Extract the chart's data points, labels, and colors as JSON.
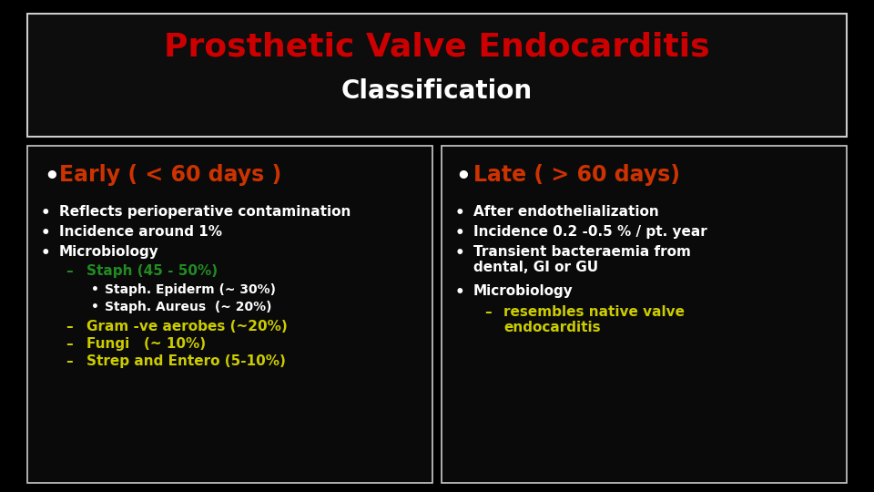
{
  "bg_color": "#000000",
  "header_box_edge": "#cccccc",
  "title": "Prosthetic Valve Endocarditis",
  "title_color": "#cc0000",
  "subtitle": "Classification",
  "subtitle_color": "#ffffff",
  "panel_bg": "#0a0a0a",
  "panel_edge": "#cccccc",
  "left_header": "Early ( < 60 days )",
  "left_header_color": "#cc3300",
  "right_header": "Late ( > 60 days)",
  "right_header_color": "#cc3300",
  "bullet_color": "#ffffff",
  "left_bullets": [
    "Reflects perioperative contamination",
    "Incidence around 1%",
    "Microbiology"
  ],
  "left_sub1_label": "Staph (45 - 50%)",
  "left_sub1_color": "#228B22",
  "left_sub2_items": [
    "Staph. Epiderm (~ 30%)",
    "Staph. Aureus  (~ 20%)"
  ],
  "left_sub2_color": "#ffffff",
  "left_sub3_items": [
    "Gram -ve aerobes (~20%)",
    "Fungi   (~ 10%)",
    "Strep and Entero (5-10%)"
  ],
  "left_sub3_color": "#cccc00",
  "right_bullets": [
    "After endothelialization",
    "Incidence 0.2 -0.5 % / pt. year",
    "Transient bacteraemia from\ndental, GI or GU",
    "Microbiology"
  ],
  "right_sub_label": "resembles native valve\nendocarditis",
  "right_sub_color": "#cccc00"
}
